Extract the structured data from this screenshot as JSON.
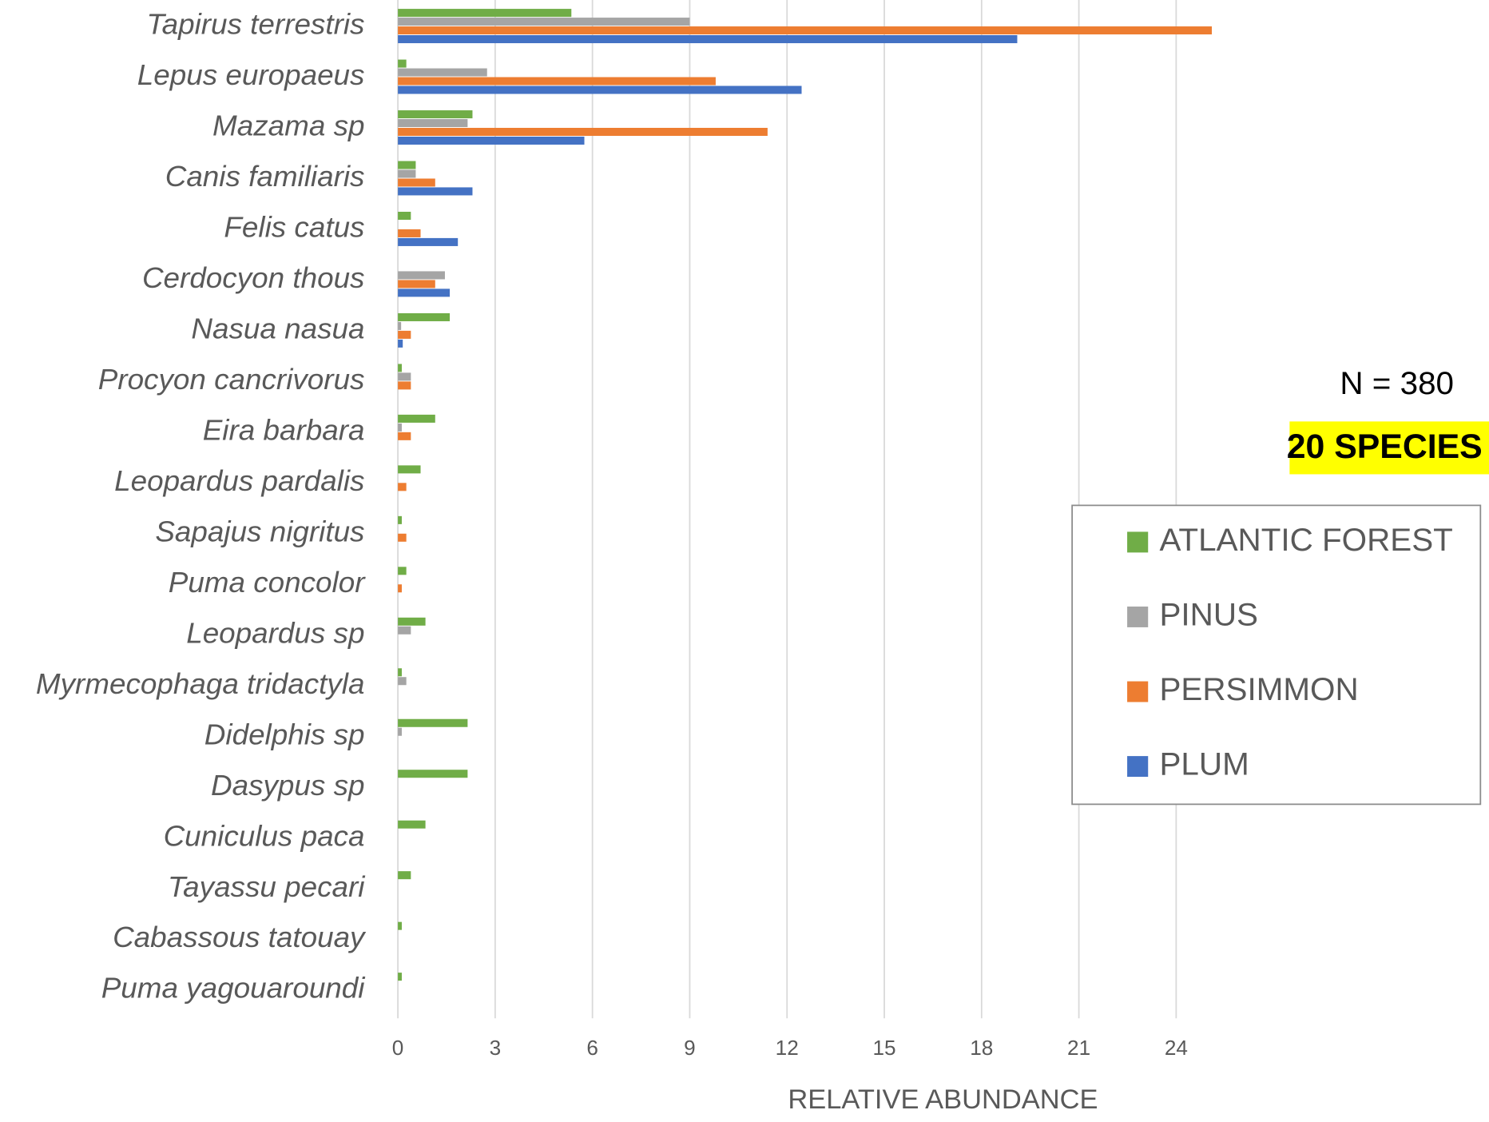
{
  "chart_data": {
    "type": "hbar",
    "xlabel": "RELATIVE ABUNDANCE",
    "annotations": [
      "N = 380",
      "20 SPECIES"
    ],
    "categories": [
      "Tapirus terrestris",
      "Lepus europaeus",
      "Mazama sp",
      "Canis familiaris",
      "Felis catus",
      "Cerdocyon thous",
      "Nasua nasua",
      "Procyon cancrivorus",
      "Eira barbara",
      "Leopardus pardalis",
      "Sapajus nigritus",
      "Puma concolor",
      "Leopardus sp",
      "Myrmecophaga tridactyla",
      "Didelphis sp",
      "Dasypus sp",
      "Cuniculus paca",
      "Tayassu pecari",
      "Cabassous tatouay",
      "Puma yagouaroundi"
    ],
    "series": [
      {
        "name": "ATLANTIC FOREST",
        "color": "#70ad47",
        "values": [
          5.35,
          0.26,
          2.3,
          0.55,
          0.4,
          null,
          1.6,
          0.12,
          1.15,
          0.7,
          0.12,
          0.26,
          0.85,
          0.12,
          2.15,
          2.15,
          0.85,
          0.4,
          0.12,
          0.12
        ]
      },
      {
        "name": "PINUS",
        "color": "#a5a5a5",
        "values": [
          9.0,
          2.75,
          2.15,
          0.55,
          null,
          1.45,
          0.1,
          0.4,
          0.12,
          null,
          null,
          null,
          0.4,
          0.26,
          0.12,
          null,
          null,
          null,
          null,
          null
        ]
      },
      {
        "name": "PERSIMMON",
        "color": "#ed7d31",
        "values": [
          25.1,
          9.8,
          11.4,
          1.15,
          0.7,
          1.15,
          0.4,
          0.4,
          0.4,
          0.26,
          0.26,
          0.12,
          null,
          null,
          null,
          null,
          null,
          null,
          null,
          null
        ]
      },
      {
        "name": "PLUM",
        "color": "#4472c4",
        "values": [
          19.1,
          12.45,
          5.75,
          2.3,
          1.85,
          1.6,
          0.15,
          null,
          null,
          null,
          null,
          null,
          null,
          null,
          null,
          null,
          null,
          null,
          null,
          null
        ]
      }
    ],
    "xlim": [
      0,
      27
    ],
    "xticks": [
      0,
      3,
      6,
      9,
      12,
      15,
      18,
      21,
      24
    ],
    "grid": true
  }
}
